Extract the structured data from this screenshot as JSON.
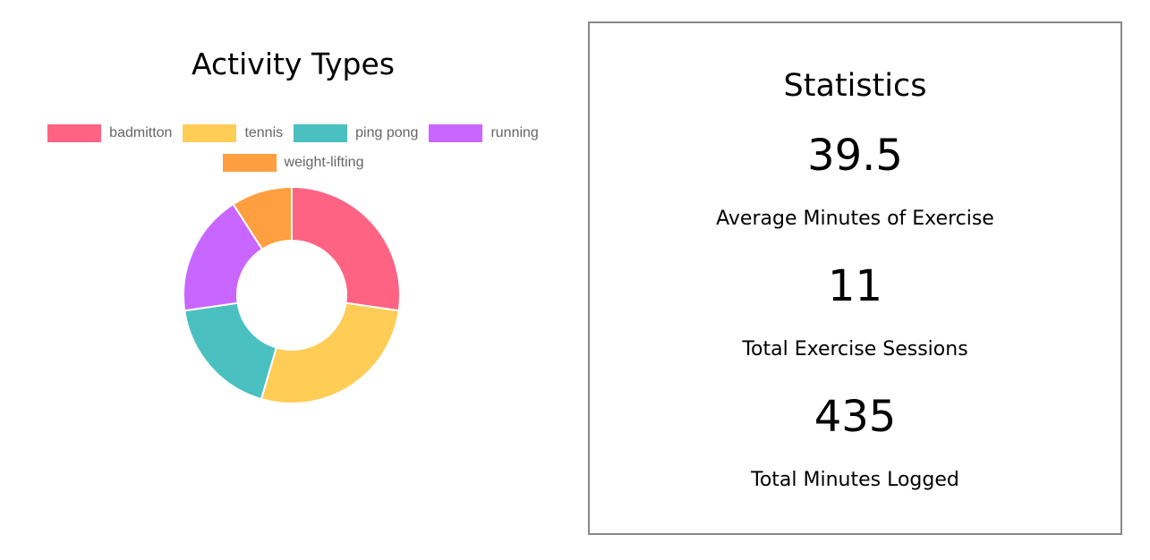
{
  "chart_data": {
    "type": "pie",
    "title": "Activity Types",
    "legend_position": "top",
    "categories": [
      "badmitton",
      "tennis",
      "ping pong",
      "running",
      "weight-lifting"
    ],
    "values": [
      3,
      3,
      2,
      2,
      1
    ],
    "colors": [
      "#ff6384",
      "#ffcd56",
      "#4bc0c0",
      "#c966ff",
      "#ff9f40"
    ]
  },
  "stats": {
    "title": "Statistics",
    "average_minutes_value": "39.5",
    "average_minutes_label": "Average Minutes of Exercise",
    "total_sessions_value": "11",
    "total_sessions_label": "Total Exercise Sessions",
    "total_minutes_value": "435",
    "total_minutes_label": "Total Minutes Logged"
  }
}
